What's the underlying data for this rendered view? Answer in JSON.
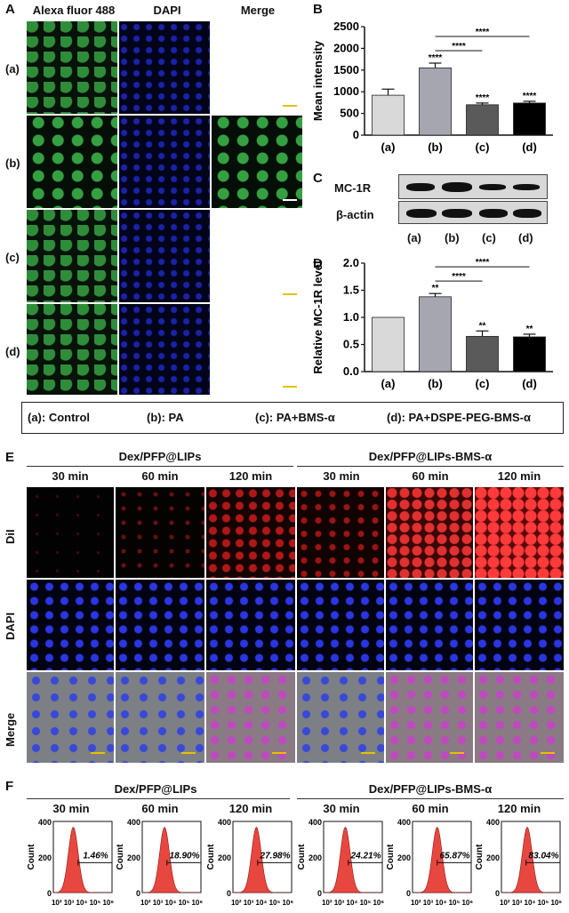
{
  "panel_a": {
    "label": "A",
    "col_headers": [
      "Alexa fluor 488",
      "DAPI",
      "Merge"
    ],
    "row_labels": [
      "(a)",
      "(b)",
      "(c)",
      "(d)"
    ]
  },
  "panel_b_label": "B",
  "panel_c": {
    "label": "C",
    "rows": [
      "MC-1R",
      "β-actin"
    ],
    "lanes": [
      "(a)",
      "(b)",
      "(c)",
      "(d)"
    ]
  },
  "panel_d_label": "D",
  "legend": {
    "a": "(a): Control",
    "b": "(b): PA",
    "c": "(c): PA+BMS-α",
    "d": "(d): PA+DSPE-PEG-BMS-α"
  },
  "panel_e": {
    "label": "E",
    "group1": "Dex/PFP@LIPs",
    "group2": "Dex/PFP@LIPs-BMS-α",
    "times": [
      "30 min",
      "60 min",
      "120 min",
      "30 min",
      "60 min",
      "120 min"
    ],
    "rows": [
      "DiI",
      "DAPI",
      "Merge"
    ]
  },
  "panel_f": {
    "label": "F",
    "group1": "Dex/PFP@LIPs",
    "group2": "Dex/PFP@LIPs-BMS-α",
    "times": [
      "30 min",
      "60 min",
      "120 min",
      "30 min",
      "60 min",
      "120 min"
    ],
    "ylabel": "Count",
    "yticks": [
      "400",
      "200",
      "0"
    ],
    "xticks": "10² 10³ 10⁴ 10⁵ 10⁶",
    "percents": [
      "1.46%",
      "18.90%",
      "27.98%",
      "24.21%",
      "65.87%",
      "83.04%"
    ]
  },
  "colors": {
    "bar_a": "#d9d9d9",
    "bar_b": "#a6a6b0",
    "bar_c": "#5a5a5a",
    "bar_d": "#000000",
    "hist": "#e8473f"
  },
  "chart_data": [
    {
      "type": "bar",
      "title": "",
      "categories": [
        "(a)",
        "(b)",
        "(c)",
        "(d)"
      ],
      "values": [
        920,
        1550,
        700,
        740
      ],
      "errors": [
        140,
        110,
        40,
        40
      ],
      "significance": [
        "",
        "****",
        "****",
        "****"
      ],
      "brackets": [
        {
          "from": "(b)",
          "to": "(c)",
          "label": "****"
        },
        {
          "from": "(b)",
          "to": "(d)",
          "label": "****"
        }
      ],
      "ylabel": "Mean intensity",
      "xlabel": "",
      "ylim": [
        0,
        2500
      ],
      "yticks": [
        0,
        500,
        1000,
        1500,
        2000,
        2500
      ]
    },
    {
      "type": "bar",
      "title": "",
      "categories": [
        "(a)",
        "(b)",
        "(c)",
        "(d)"
      ],
      "values": [
        1.0,
        1.38,
        0.65,
        0.64
      ],
      "errors": [
        0,
        0.06,
        0.1,
        0.05
      ],
      "significance": [
        "",
        "**",
        "**",
        "**"
      ],
      "brackets": [
        {
          "from": "(b)",
          "to": "(c)",
          "label": "****"
        },
        {
          "from": "(b)",
          "to": "(d)",
          "label": "****"
        }
      ],
      "ylabel": "Relative MC-1R level",
      "xlabel": "",
      "ylim": [
        0,
        2.0
      ],
      "yticks": [
        0.0,
        0.5,
        1.0,
        1.5,
        2.0
      ]
    }
  ]
}
